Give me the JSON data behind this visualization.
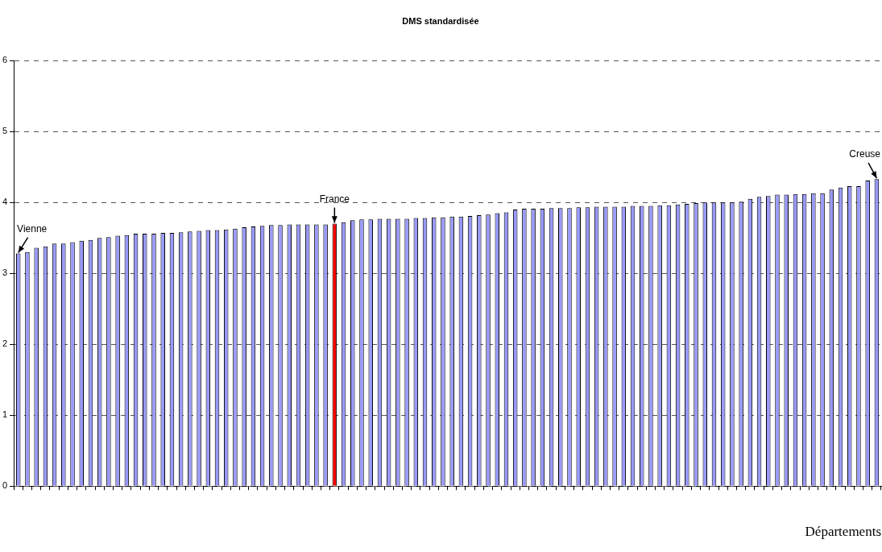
{
  "chart_data": {
    "type": "bar",
    "title": "DMS standardisée",
    "xlabel": "Départements",
    "categories": [
      null,
      null,
      null,
      null,
      null,
      null,
      null,
      null,
      null,
      null,
      null,
      null,
      null,
      null,
      null,
      null,
      null,
      null,
      null,
      null,
      null,
      null,
      null,
      null,
      null,
      null,
      null,
      null,
      null,
      null,
      null,
      null,
      null,
      null,
      null,
      null,
      null,
      null,
      null,
      null,
      null,
      null,
      null,
      null,
      null,
      null,
      null,
      null,
      null,
      null,
      null,
      null,
      null,
      null,
      null,
      null,
      null,
      null,
      null,
      null,
      null,
      null,
      null,
      null,
      null,
      null,
      null,
      null,
      null,
      null,
      null,
      null,
      null,
      null,
      null,
      null,
      null,
      null,
      null,
      null,
      null,
      null,
      null,
      null,
      null,
      null,
      null,
      null,
      null,
      null,
      null,
      null,
      null,
      null,
      null,
      null
    ],
    "values": [
      3.28,
      3.3,
      3.36,
      3.38,
      3.42,
      3.42,
      3.44,
      3.46,
      3.47,
      3.5,
      3.51,
      3.53,
      3.54,
      3.56,
      3.56,
      3.56,
      3.57,
      3.57,
      3.58,
      3.59,
      3.6,
      3.61,
      3.61,
      3.62,
      3.63,
      3.65,
      3.66,
      3.67,
      3.68,
      3.68,
      3.69,
      3.69,
      3.69,
      3.69,
      3.69,
      3.7,
      3.72,
      3.75,
      3.76,
      3.76,
      3.77,
      3.77,
      3.77,
      3.77,
      3.78,
      3.78,
      3.79,
      3.79,
      3.8,
      3.8,
      3.81,
      3.82,
      3.83,
      3.85,
      3.86,
      3.9,
      3.91,
      3.91,
      3.91,
      3.92,
      3.92,
      3.92,
      3.93,
      3.93,
      3.94,
      3.94,
      3.94,
      3.94,
      3.95,
      3.95,
      3.95,
      3.96,
      3.96,
      3.97,
      3.98,
      3.99,
      4.0,
      4.0,
      4.0,
      4.0,
      4.01,
      4.05,
      4.08,
      4.09,
      4.11,
      4.11,
      4.12,
      4.12,
      4.13,
      4.13,
      4.18,
      4.21,
      4.23,
      4.23,
      4.31,
      4.33
    ],
    "colors": [
      "#9999ff",
      "#9999ff",
      "#9999ff",
      "#9999ff",
      "#9999ff",
      "#9999ff",
      "#9999ff",
      "#9999ff",
      "#9999ff",
      "#9999ff",
      "#9999ff",
      "#9999ff",
      "#9999ff",
      "#9999ff",
      "#9999ff",
      "#9999ff",
      "#9999ff",
      "#9999ff",
      "#9999ff",
      "#9999ff",
      "#9999ff",
      "#9999ff",
      "#9999ff",
      "#9999ff",
      "#9999ff",
      "#9999ff",
      "#9999ff",
      "#9999ff",
      "#9999ff",
      "#9999ff",
      "#9999ff",
      "#9999ff",
      "#9999ff",
      "#9999ff",
      "#9999ff",
      "#ff0000",
      "#9999ff",
      "#9999ff",
      "#9999ff",
      "#9999ff",
      "#9999ff",
      "#9999ff",
      "#9999ff",
      "#9999ff",
      "#9999ff",
      "#9999ff",
      "#9999ff",
      "#9999ff",
      "#9999ff",
      "#9999ff",
      "#9999ff",
      "#9999ff",
      "#9999ff",
      "#9999ff",
      "#9999ff",
      "#9999ff",
      "#9999ff",
      "#9999ff",
      "#9999ff",
      "#9999ff",
      "#9999ff",
      "#9999ff",
      "#9999ff",
      "#9999ff",
      "#9999ff",
      "#9999ff",
      "#9999ff",
      "#9999ff",
      "#9999ff",
      "#9999ff",
      "#9999ff",
      "#9999ff",
      "#9999ff",
      "#9999ff",
      "#9999ff",
      "#9999ff",
      "#9999ff",
      "#9999ff",
      "#9999ff",
      "#9999ff",
      "#9999ff",
      "#9999ff",
      "#9999ff",
      "#9999ff",
      "#9999ff",
      "#9999ff",
      "#9999ff",
      "#9999ff",
      "#9999ff",
      "#9999ff",
      "#9999ff",
      "#9999ff",
      "#9999ff",
      "#9999ff",
      "#9999ff",
      "#9999ff"
    ],
    "ylim": [
      0,
      6
    ],
    "yticks": [
      0,
      1,
      2,
      3,
      4,
      5,
      6
    ],
    "grid": "y",
    "legend": false,
    "annotations": [
      {
        "text": "Vienne",
        "y": 3.28
      },
      {
        "text": "France",
        "y": 3.7
      },
      {
        "text": "Creuse",
        "y": 4.33
      }
    ]
  }
}
